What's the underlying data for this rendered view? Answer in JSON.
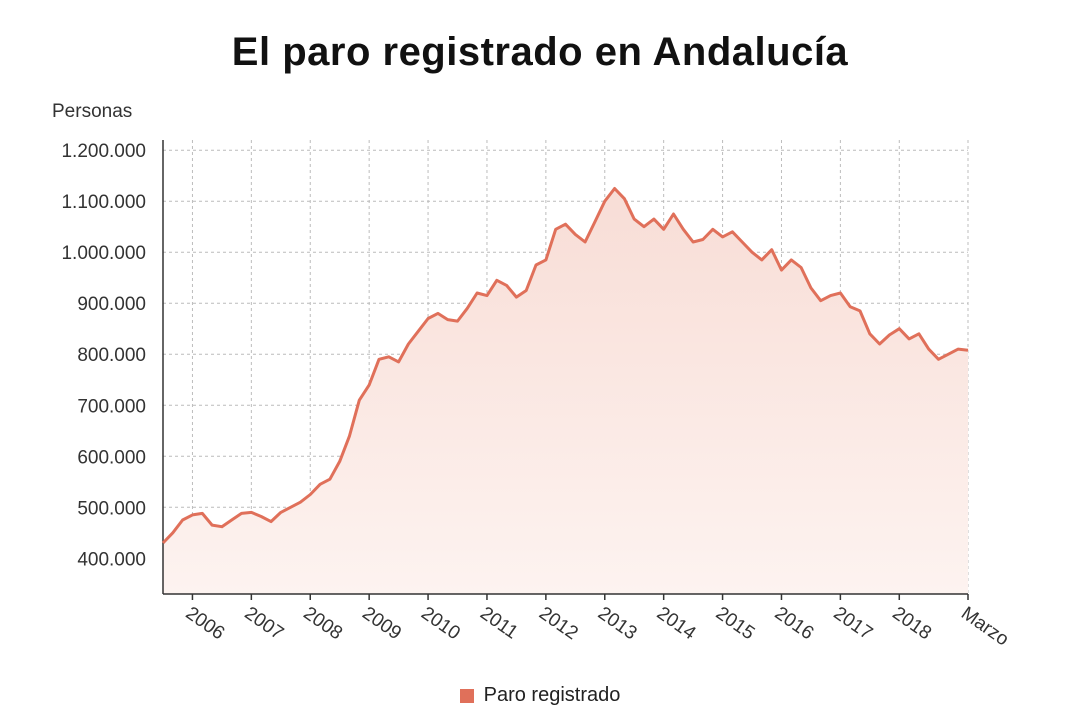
{
  "colors": {
    "line": "#e0705a",
    "fill_top": "#f8ddd6",
    "fill_bottom": "#fdf3f0",
    "grid": "#bcbcbc",
    "axis": "#333333"
  },
  "chart_data": {
    "type": "area",
    "title": "El paro registrado en Andalucía",
    "ylabel": "Personas",
    "xlabel": "",
    "ylim": [
      330000,
      1220000
    ],
    "yticks": [
      400000,
      500000,
      600000,
      700000,
      800000,
      900000,
      1000000,
      1100000,
      1200000
    ],
    "ytick_labels": [
      "400.000",
      "500.000",
      "600.000",
      "700.000",
      "800.000",
      "900.000",
      "1.000.000",
      "1.100.000",
      "1.200.000"
    ],
    "xlim": [
      "2005-07",
      "2019-03"
    ],
    "xticks": [
      "2006-01",
      "2007-01",
      "2008-01",
      "2009-01",
      "2010-01",
      "2011-01",
      "2012-01",
      "2013-01",
      "2014-01",
      "2015-01",
      "2016-01",
      "2017-01",
      "2018-01",
      "2019-03"
    ],
    "xtick_labels": [
      "2006",
      "2007",
      "2008",
      "2009",
      "2010",
      "2011",
      "2012",
      "2013",
      "2014",
      "2015",
      "2016",
      "2017",
      "2018",
      "Marzo"
    ],
    "grid": true,
    "legend_position": "bottom",
    "series": [
      {
        "name": "Paro registrado",
        "x": [
          "2005-07",
          "2005-09",
          "2005-11",
          "2006-01",
          "2006-03",
          "2006-05",
          "2006-07",
          "2006-09",
          "2006-11",
          "2007-01",
          "2007-03",
          "2007-05",
          "2007-07",
          "2007-09",
          "2007-11",
          "2008-01",
          "2008-03",
          "2008-05",
          "2008-07",
          "2008-09",
          "2008-11",
          "2009-01",
          "2009-03",
          "2009-05",
          "2009-07",
          "2009-09",
          "2009-11",
          "2010-01",
          "2010-03",
          "2010-05",
          "2010-07",
          "2010-09",
          "2010-11",
          "2011-01",
          "2011-03",
          "2011-05",
          "2011-07",
          "2011-09",
          "2011-11",
          "2012-01",
          "2012-03",
          "2012-05",
          "2012-07",
          "2012-09",
          "2012-11",
          "2013-01",
          "2013-03",
          "2013-05",
          "2013-07",
          "2013-09",
          "2013-11",
          "2014-01",
          "2014-03",
          "2014-05",
          "2014-07",
          "2014-09",
          "2014-11",
          "2015-01",
          "2015-03",
          "2015-05",
          "2015-07",
          "2015-09",
          "2015-11",
          "2016-01",
          "2016-03",
          "2016-05",
          "2016-07",
          "2016-09",
          "2016-11",
          "2017-01",
          "2017-03",
          "2017-05",
          "2017-07",
          "2017-09",
          "2017-11",
          "2018-01",
          "2018-03",
          "2018-05",
          "2018-07",
          "2018-09",
          "2018-11",
          "2019-01",
          "2019-03"
        ],
        "values": [
          430000,
          450000,
          475000,
          485000,
          488000,
          465000,
          462000,
          475000,
          488000,
          490000,
          482000,
          472000,
          490000,
          500000,
          510000,
          525000,
          545000,
          555000,
          590000,
          640000,
          710000,
          740000,
          790000,
          795000,
          785000,
          820000,
          845000,
          870000,
          880000,
          868000,
          865000,
          890000,
          920000,
          915000,
          945000,
          935000,
          912000,
          925000,
          975000,
          985000,
          1045000,
          1055000,
          1035000,
          1020000,
          1060000,
          1100000,
          1125000,
          1105000,
          1065000,
          1050000,
          1065000,
          1045000,
          1075000,
          1045000,
          1020000,
          1025000,
          1045000,
          1030000,
          1040000,
          1020000,
          1000000,
          985000,
          1005000,
          965000,
          985000,
          970000,
          930000,
          905000,
          915000,
          920000,
          893000,
          885000,
          840000,
          820000,
          838000,
          850000,
          830000,
          840000,
          810000,
          790000,
          800000,
          810000,
          808000
        ]
      }
    ]
  }
}
